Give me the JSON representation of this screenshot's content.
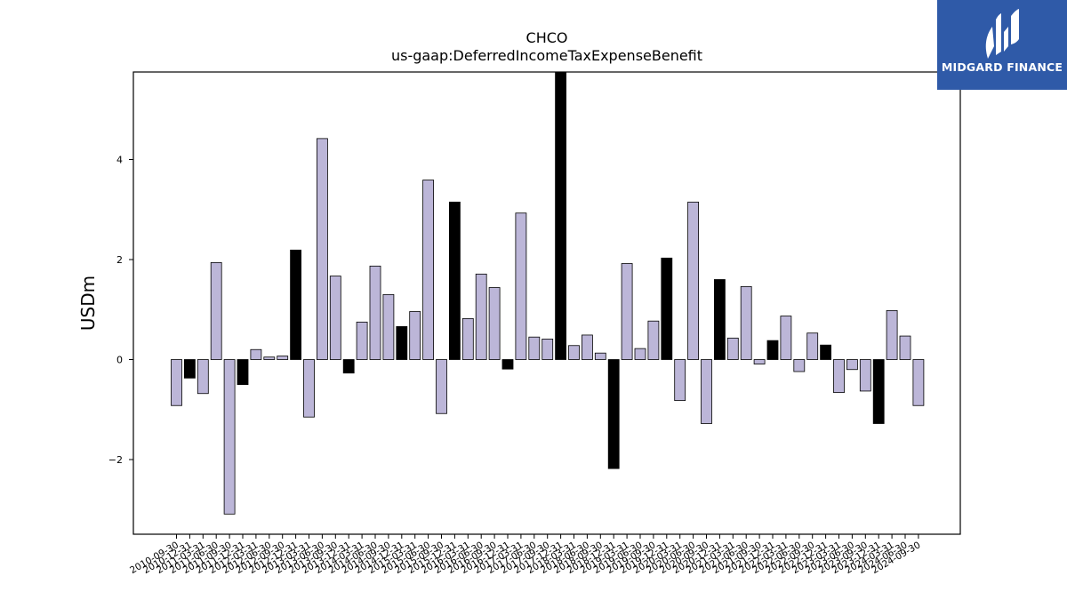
{
  "chart_data": {
    "type": "bar",
    "title": "CHCO",
    "subtitle": "us-gaap:DeferredIncomeTaxExpenseBenefit",
    "xlabel": "",
    "ylabel": "USDm",
    "ylim": [
      -3.5,
      5.7
    ],
    "yticks": [
      -2,
      0,
      2,
      4
    ],
    "ytick_labels": [
      "−2",
      "0",
      "2",
      "4"
    ],
    "grid": false,
    "colors": {
      "quarter": "#bcb6d8",
      "annual": "#000000",
      "edge": "#000000"
    },
    "categories": [
      "2010-09-30",
      "2010-12-31",
      "2011-03-31",
      "2011-06-30",
      "2011-09-30",
      "2011-12-31",
      "2012-03-31",
      "2012-06-30",
      "2012-09-30",
      "2012-12-31",
      "2013-03-31",
      "2013-06-30",
      "2013-09-30",
      "2013-12-31",
      "2014-03-31",
      "2014-06-30",
      "2014-09-30",
      "2014-12-31",
      "2015-03-31",
      "2015-06-30",
      "2015-09-30",
      "2015-12-31",
      "2016-03-31",
      "2016-06-30",
      "2016-09-30",
      "2016-12-31",
      "2017-03-31",
      "2017-06-30",
      "2017-09-30",
      "2017-12-31",
      "2018-03-31",
      "2018-06-30",
      "2018-09-30",
      "2018-12-31",
      "2019-03-31",
      "2019-06-30",
      "2019-09-30",
      "2019-12-31",
      "2020-03-31",
      "2020-06-30",
      "2020-09-30",
      "2020-12-31",
      "2021-03-31",
      "2021-06-30",
      "2021-09-30",
      "2021-12-31",
      "2022-03-31",
      "2022-06-30",
      "2022-09-30",
      "2022-12-31",
      "2023-03-31",
      "2023-06-30",
      "2023-09-30",
      "2023-12-31",
      "2024-03-31",
      "2024-06-30",
      "2024-09-30"
    ],
    "values": [
      -0.92,
      -0.37,
      -0.68,
      1.94,
      -3.09,
      -0.5,
      0.2,
      0.05,
      0.07,
      2.19,
      -1.15,
      4.42,
      1.67,
      -0.27,
      0.75,
      1.87,
      1.3,
      0.66,
      0.96,
      3.59,
      -1.08,
      3.15,
      0.82,
      1.71,
      1.44,
      -0.19,
      2.93,
      0.45,
      0.41,
      5.75,
      0.28,
      0.49,
      0.13,
      -2.18,
      1.92,
      0.22,
      0.77,
      2.03,
      -0.82,
      3.15,
      -1.28,
      1.6,
      0.43,
      1.46,
      -0.09,
      0.38,
      0.87,
      -0.24,
      0.53,
      0.29,
      -0.66,
      -0.2,
      -0.63,
      -1.28,
      0.98,
      0.47,
      -0.92
    ],
    "annual_flags": [
      0,
      1,
      0,
      0,
      0,
      1,
      0,
      0,
      0,
      1,
      0,
      0,
      0,
      1,
      0,
      0,
      0,
      1,
      0,
      0,
      0,
      1,
      0,
      0,
      0,
      1,
      0,
      0,
      0,
      1,
      0,
      0,
      0,
      1,
      0,
      0,
      0,
      1,
      0,
      0,
      0,
      1,
      0,
      0,
      0,
      1,
      0,
      0,
      0,
      1,
      0,
      0,
      0,
      1,
      0,
      0,
      0
    ]
  },
  "logo": {
    "text": "MIDGARD FINANCE",
    "background": "#2f5aa8"
  }
}
